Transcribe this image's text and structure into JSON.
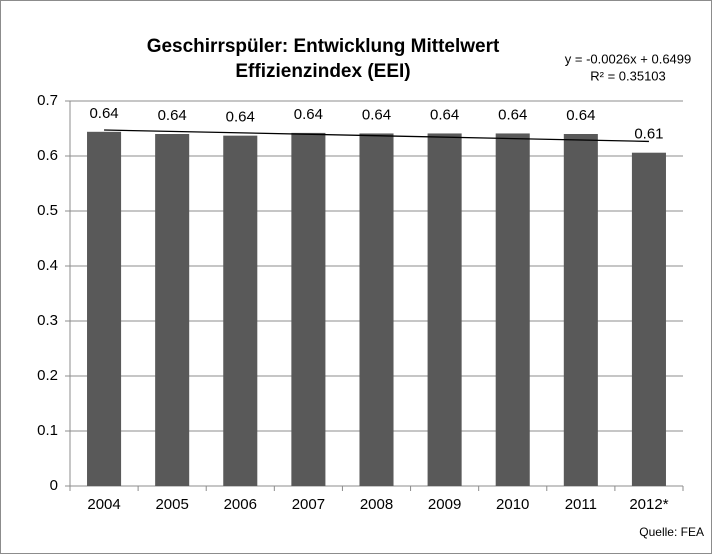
{
  "chart_data": {
    "type": "bar",
    "title": [
      "Geschirrspüler: Entwicklung Mittelwert",
      "Effizienzindex (EEI)"
    ],
    "categories": [
      "2004",
      "2005",
      "2006",
      "2007",
      "2008",
      "2009",
      "2010",
      "2011",
      "2012*"
    ],
    "values": [
      0.644,
      0.64,
      0.637,
      0.642,
      0.641,
      0.641,
      0.641,
      0.64,
      0.606
    ],
    "value_labels": [
      "0.64",
      "0.64",
      "0.64",
      "0.64",
      "0.64",
      "0.64",
      "0.64",
      "0.64",
      "0.61"
    ],
    "color": "#595959",
    "ylim": [
      0,
      0.7
    ],
    "yticks": [
      0,
      0.1,
      0.2,
      0.3,
      0.4,
      0.5,
      0.6,
      0.7
    ],
    "grid": true,
    "trendline": {
      "equation": "y = -0.0026x + 0.6499",
      "r_squared": "R² = 0.35103",
      "slope": -0.0026,
      "intercept": 0.6499,
      "color": "#000000"
    },
    "source": "Quelle: FEA"
  }
}
